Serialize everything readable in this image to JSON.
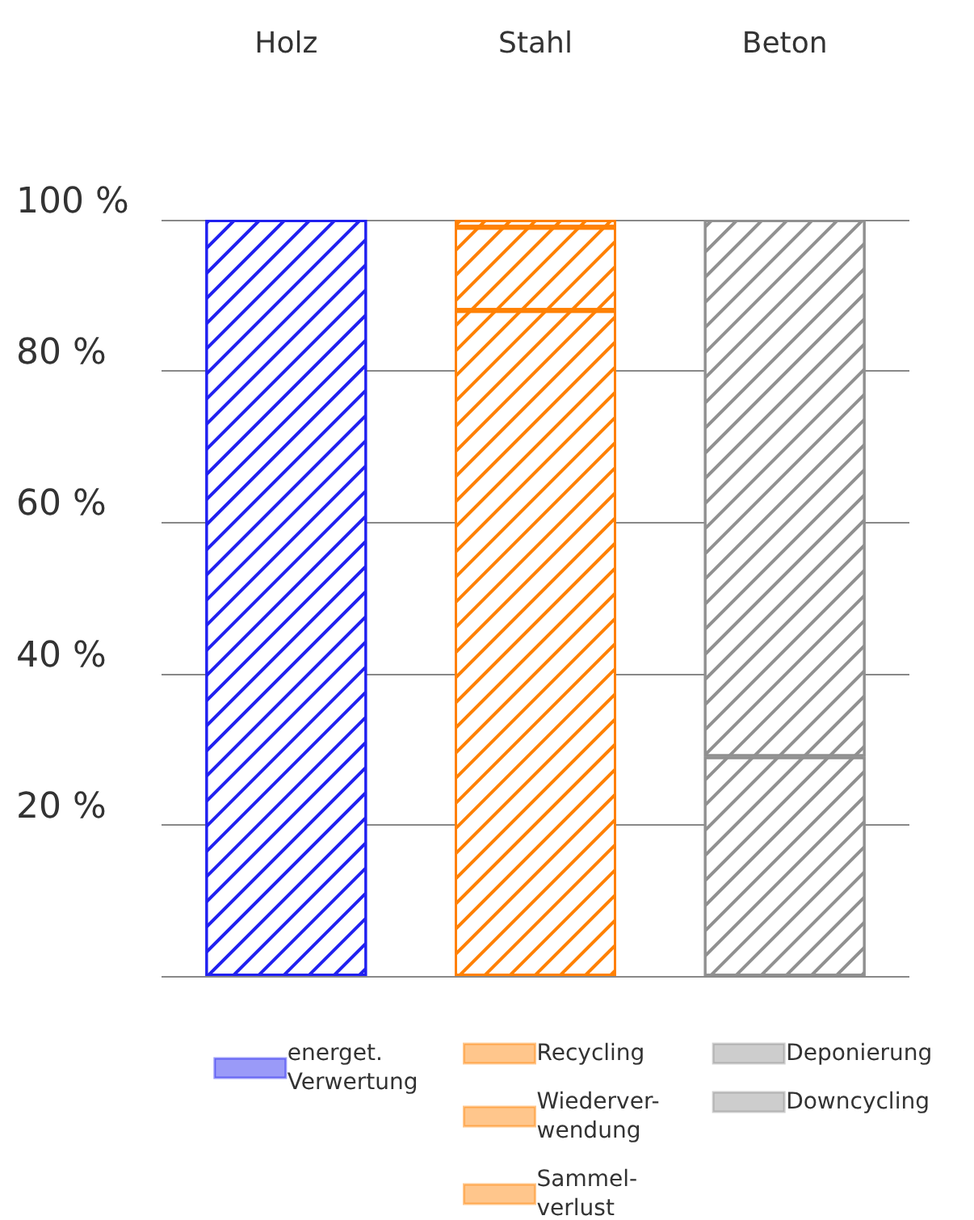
{
  "chart_data": {
    "type": "bar",
    "stacked": true,
    "categories": [
      "Holz",
      "Stahl",
      "Beton"
    ],
    "series": [
      {
        "name": "energet.\nVerwertung",
        "color": "#2020f0",
        "values": [
          100,
          null,
          null
        ]
      },
      {
        "name": "Recycling",
        "color": "#ff8000",
        "values": [
          null,
          88,
          null
        ]
      },
      {
        "name": "Wiederver-\nwendung",
        "color": "#ff8000",
        "values": [
          null,
          11,
          null
        ]
      },
      {
        "name": "Sammel-\nverlust",
        "color": "#ff8000",
        "values": [
          null,
          1,
          null
        ]
      },
      {
        "name": "Deponierung",
        "color": "#909090",
        "values": [
          null,
          null,
          29
        ]
      },
      {
        "name": "Downcycling",
        "color": "#909090",
        "values": [
          null,
          null,
          71
        ]
      }
    ],
    "ylim": [
      0,
      100
    ],
    "yticks": [
      {
        "value": 0,
        "label": null
      },
      {
        "value": 20,
        "label": "20 %"
      },
      {
        "value": 40,
        "label": "40 %"
      },
      {
        "value": 60,
        "label": "60 %"
      },
      {
        "value": 80,
        "label": "80 %"
      },
      {
        "value": 100,
        "label": "100 %"
      }
    ],
    "grid": "y",
    "legend": "bottom"
  }
}
